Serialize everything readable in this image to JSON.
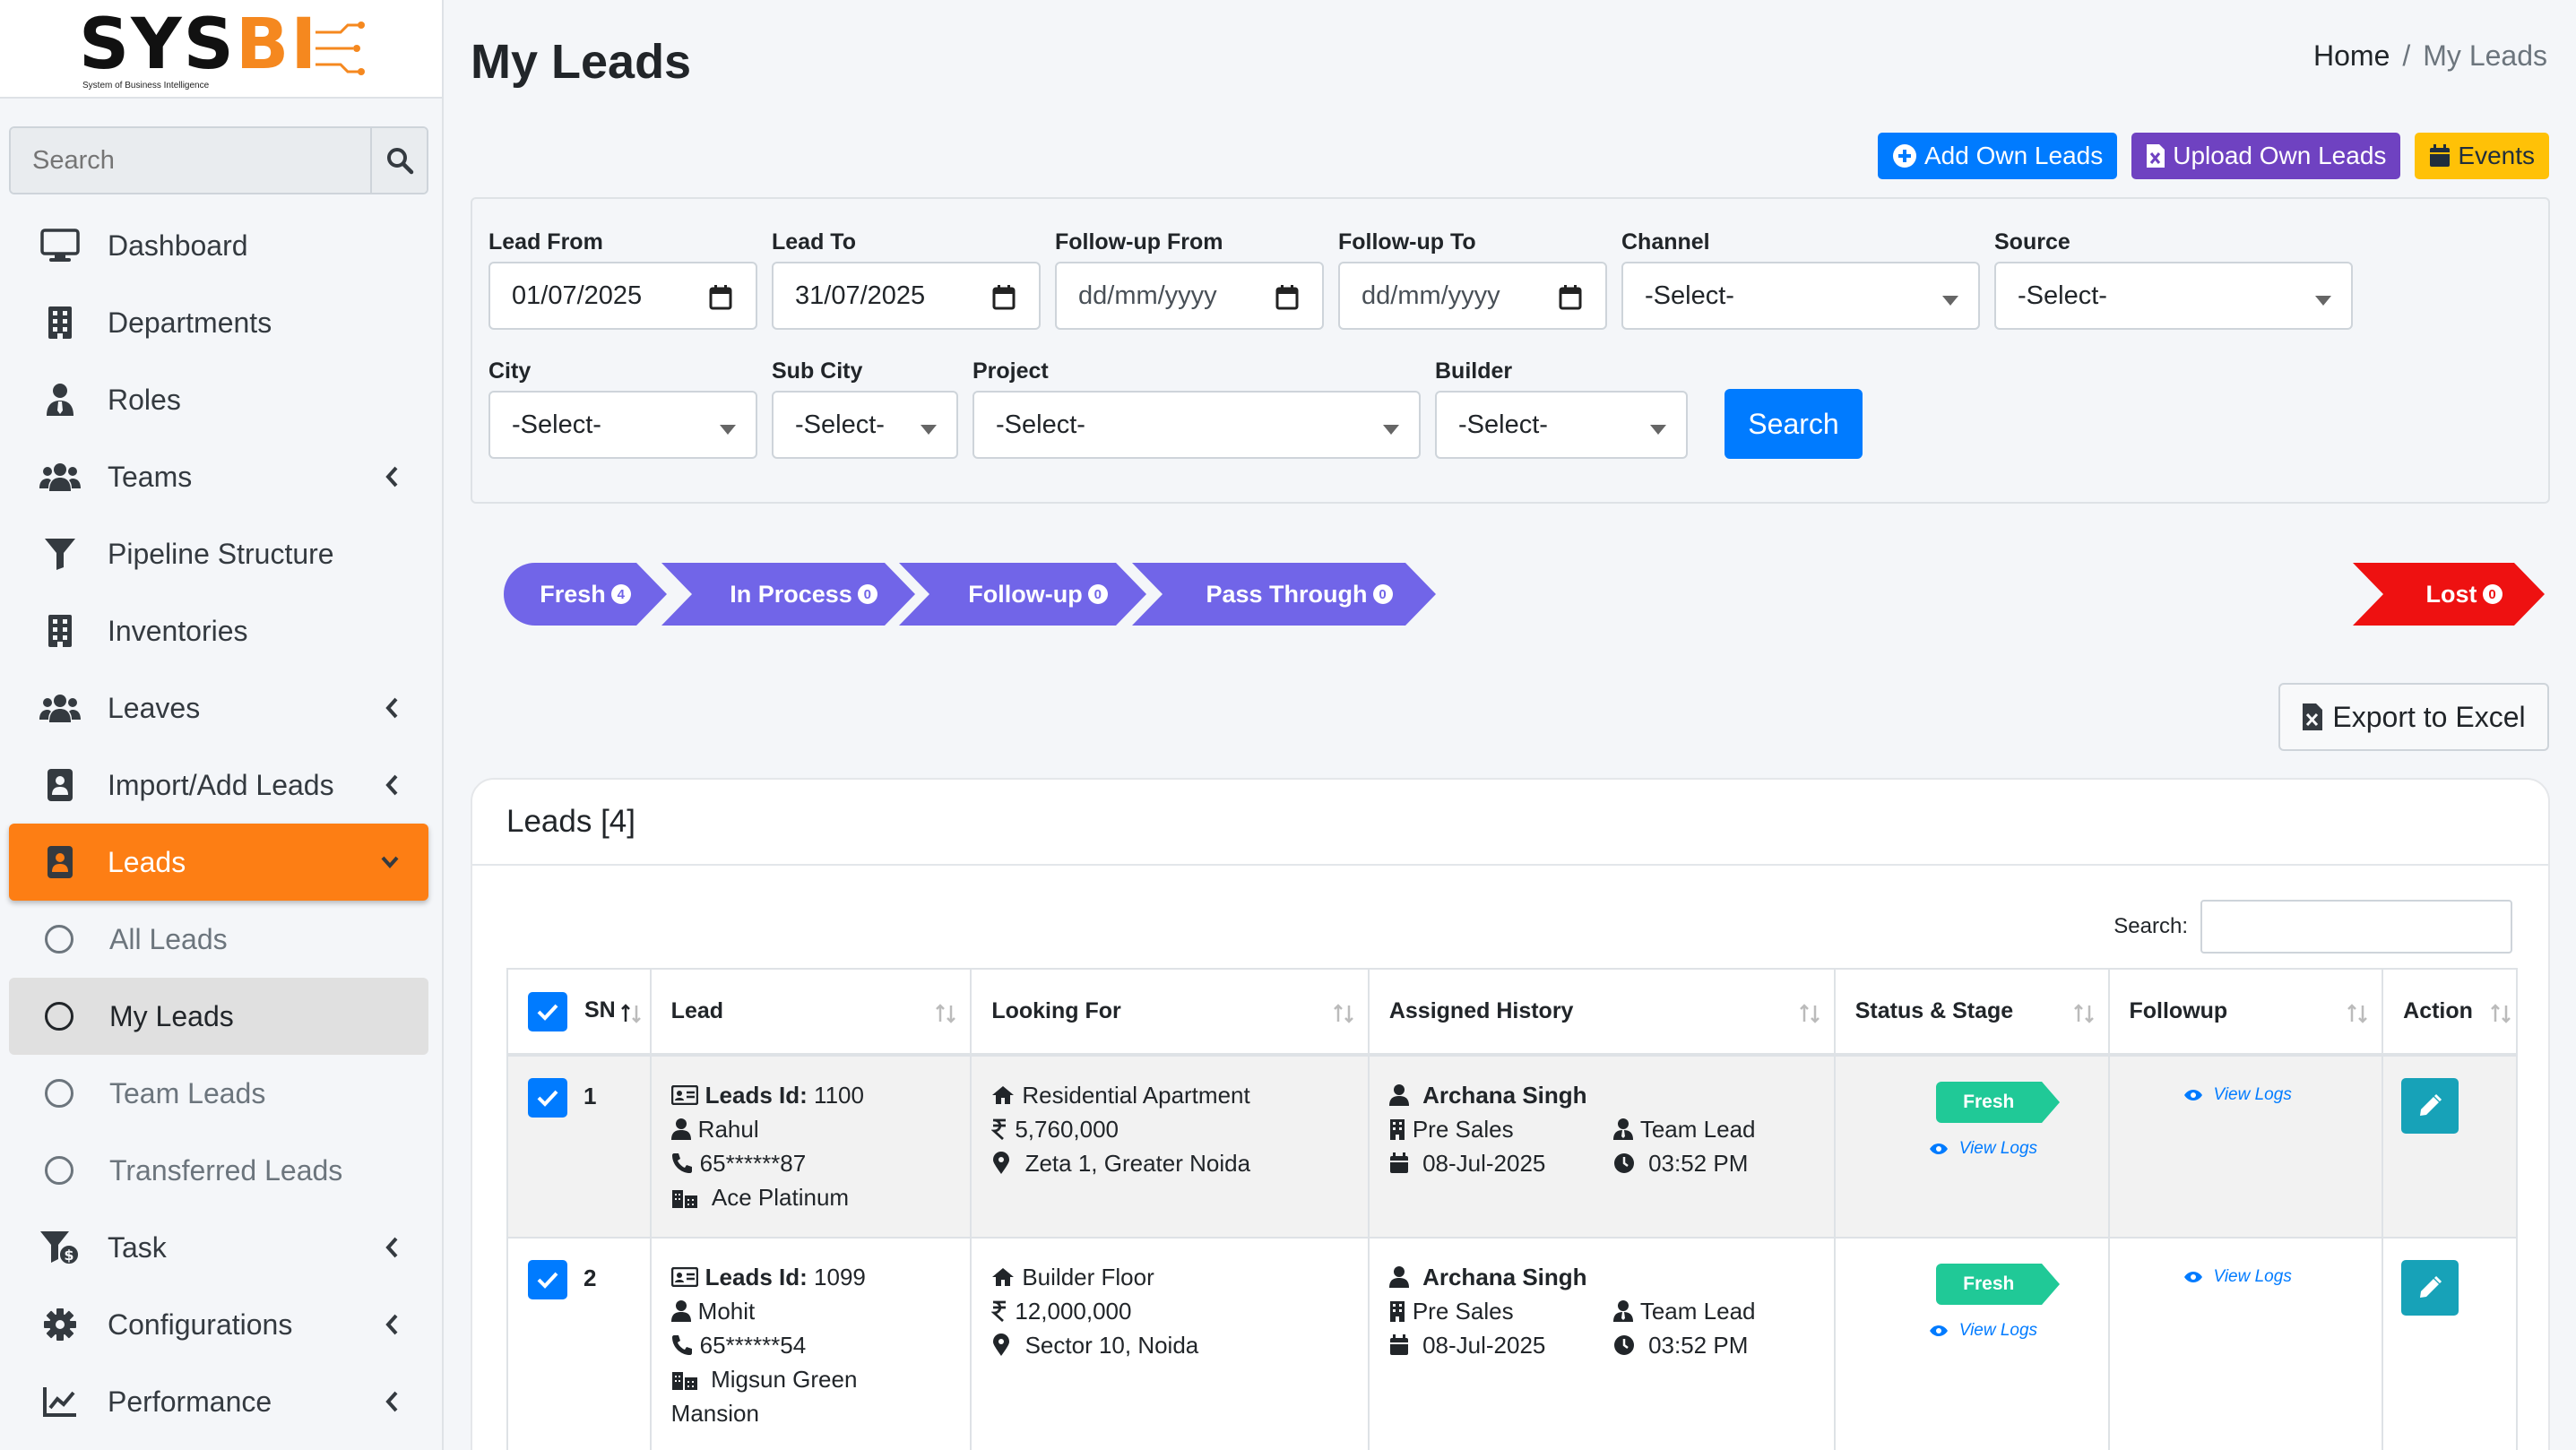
{
  "brand": {
    "name_main": "SYS",
    "name_accent": "BI",
    "tagline": "System of Business Intelligence"
  },
  "sidebar": {
    "search_placeholder": "Search",
    "items": [
      {
        "label": "Dashboard",
        "icon": "desktop-icon"
      },
      {
        "label": "Departments",
        "icon": "building-icon"
      },
      {
        "label": "Roles",
        "icon": "user-tie-icon"
      },
      {
        "label": "Teams",
        "icon": "users-icon"
      },
      {
        "label": "Pipeline Structure",
        "icon": "filter-icon"
      },
      {
        "label": "Inventories",
        "icon": "building-icon"
      },
      {
        "label": "Leaves",
        "icon": "users-icon"
      },
      {
        "label": "Import/Add Leads",
        "icon": "contact-book-icon"
      },
      {
        "label": "Leads",
        "icon": "contact-book-icon"
      },
      {
        "label": "All Leads"
      },
      {
        "label": "My Leads"
      },
      {
        "label": "Team Leads"
      },
      {
        "label": "Transferred Leads"
      },
      {
        "label": "Task",
        "icon": "funnel-dollar-icon"
      },
      {
        "label": "Configurations",
        "icon": "gear-icon"
      },
      {
        "label": "Performance",
        "icon": "line-chart-icon"
      }
    ]
  },
  "header": {
    "title": "My Leads",
    "breadcrumb": {
      "home": "Home",
      "separator": "/",
      "current": "My Leads"
    }
  },
  "actions": {
    "add_own": "Add Own Leads",
    "upload_own": "Upload Own Leads",
    "events": "Events"
  },
  "filters": {
    "lead_from": {
      "label": "Lead From",
      "value": "01/07/2025"
    },
    "lead_to": {
      "label": "Lead To",
      "value": "31/07/2025"
    },
    "followup_from": {
      "label": "Follow-up From",
      "value": "dd/mm/yyyy"
    },
    "followup_to": {
      "label": "Follow-up To",
      "value": "dd/mm/yyyy"
    },
    "channel": {
      "label": "Channel",
      "value": "-Select-"
    },
    "source": {
      "label": "Source",
      "value": "-Select-"
    },
    "city": {
      "label": "City",
      "value": "-Select-"
    },
    "sub_city": {
      "label": "Sub City",
      "value": "-Select-"
    },
    "project": {
      "label": "Project",
      "value": "-Select-"
    },
    "builder": {
      "label": "Builder",
      "value": "-Select-"
    },
    "search_label": "Search"
  },
  "stages": [
    {
      "label": "Fresh",
      "count": "4"
    },
    {
      "label": "In Process",
      "count": "0"
    },
    {
      "label": "Follow-up",
      "count": "0"
    },
    {
      "label": "Pass Through",
      "count": "0"
    },
    {
      "label": "Lost",
      "count": "0"
    }
  ],
  "colors": {
    "stage": "#7165e8",
    "lost": "#ee1111",
    "accent": "#fd7e14",
    "fresh": "#20c997"
  },
  "export_label": "Export to Excel",
  "leads_card": {
    "title": "Leads [4]",
    "search_label": "Search:",
    "columns": [
      "SN",
      "Lead",
      "Looking For",
      "Assigned History",
      "Status & Stage",
      "Followup",
      "Action"
    ],
    "rows": [
      {
        "sn": "1",
        "lead_id_label": "Leads Id:",
        "lead_id": "1100",
        "name": "Rahul",
        "phone": "65******87",
        "project": "Ace Platinum",
        "looking_for": "Residential Apartment",
        "budget": "5,760,000",
        "location": "Zeta 1, Greater Noida",
        "assigned_to": "Archana Singh",
        "department": "Pre Sales",
        "role": "Team Lead",
        "date": "08-Jul-2025",
        "time": "03:52 PM",
        "status": "Fresh",
        "view_logs": "View Logs"
      },
      {
        "sn": "2",
        "lead_id_label": "Leads Id:",
        "lead_id": "1099",
        "name": "Mohit",
        "phone": "65******54",
        "project": "Migsun Green Mansion",
        "looking_for": "Builder Floor",
        "budget": "12,000,000",
        "location": "Sector 10, Noida",
        "assigned_to": "Archana Singh",
        "department": "Pre Sales",
        "role": "Team Lead",
        "date": "08-Jul-2025",
        "time": "03:52 PM",
        "status": "Fresh",
        "view_logs": "View Logs"
      }
    ]
  }
}
